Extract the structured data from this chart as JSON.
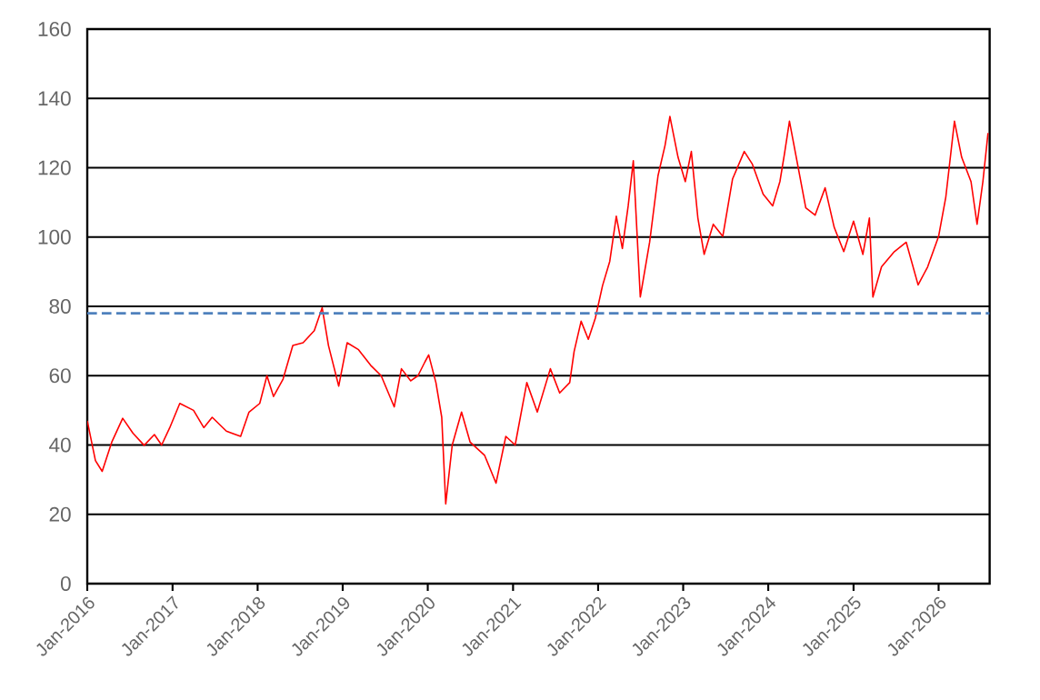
{
  "chart_data": {
    "type": "line",
    "x": [
      "2016-01-01",
      "2016-02-05",
      "2016-03-05",
      "2016-04-15",
      "2016-06-01",
      "2016-07-15",
      "2016-09-01",
      "2016-10-15",
      "2016-11-15",
      "2016-12-20",
      "2017-02-01",
      "2017-04-01",
      "2017-05-15",
      "2017-06-20",
      "2017-08-20",
      "2017-10-20",
      "2017-11-25",
      "2018-01-10",
      "2018-02-10",
      "2018-03-10",
      "2018-04-20",
      "2018-06-01",
      "2018-07-15",
      "2018-09-01",
      "2018-10-05",
      "2018-11-01",
      "2018-12-15",
      "2019-01-20",
      "2019-03-10",
      "2019-05-01",
      "2019-06-15",
      "2019-08-10",
      "2019-09-10",
      "2019-10-20",
      "2019-11-20",
      "2019-12-20",
      "2020-01-05",
      "2020-02-05",
      "2020-03-01",
      "2020-03-18",
      "2020-04-15",
      "2020-05-25",
      "2020-07-01",
      "2020-09-01",
      "2020-10-20",
      "2020-12-01",
      "2021-01-10",
      "2021-03-01",
      "2021-04-15",
      "2021-06-10",
      "2021-07-20",
      "2021-09-01",
      "2021-09-20",
      "2021-10-20",
      "2021-11-20",
      "2021-12-20",
      "2022-01-20",
      "2022-02-20",
      "2022-03-20",
      "2022-04-15",
      "2022-05-10",
      "2022-06-01",
      "2022-07-01",
      "2022-08-10",
      "2022-09-15",
      "2022-10-15",
      "2022-11-05",
      "2022-12-10",
      "2023-01-10",
      "2023-02-05",
      "2023-03-05",
      "2023-04-01",
      "2023-05-10",
      "2023-06-20",
      "2023-08-01",
      "2023-09-20",
      "2023-10-25",
      "2023-12-10",
      "2024-01-20",
      "2024-02-20",
      "2024-03-10",
      "2024-04-01",
      "2024-05-10",
      "2024-06-10",
      "2024-07-20",
      "2024-09-01",
      "2024-10-10",
      "2024-11-20",
      "2025-01-01",
      "2025-02-10",
      "2025-03-10",
      "2025-03-25",
      "2025-05-01",
      "2025-06-25",
      "2025-08-15",
      "2025-10-05",
      "2025-11-15",
      "2026-01-01",
      "2026-02-01",
      "2026-03-10",
      "2026-04-10",
      "2026-05-20",
      "2026-06-15",
      "2026-07-10",
      "2026-08-01"
    ],
    "series": [
      {
        "color": "#ff0000",
        "values": [
          47,
          35.5,
          32.4,
          40.8,
          47.7,
          43.4,
          39.9,
          43,
          40,
          45,
          52,
          50,
          45,
          48,
          44,
          42.5,
          49.5,
          52,
          60,
          54,
          59,
          68.7,
          69.5,
          73,
          79.6,
          68.7,
          57,
          69.5,
          67.5,
          63,
          60,
          51,
          62,
          58.5,
          60,
          64,
          66,
          58,
          48,
          23,
          40,
          49.5,
          40.8,
          37,
          29,
          42.5,
          40,
          58,
          49.5,
          62,
          55,
          58,
          67,
          75.7,
          70.5,
          76.6,
          86,
          93,
          106,
          96.7,
          109,
          122,
          82.7,
          98.5,
          117.7,
          126.4,
          134.8,
          123,
          116,
          124.7,
          105.5,
          95,
          103.7,
          100.2,
          116.8,
          124.7,
          121,
          112.4,
          109,
          116,
          123.8,
          133.4,
          119.5,
          108.4,
          106.3,
          114.2,
          102.8,
          95.8,
          104.6,
          95,
          105.5,
          82.7,
          91.4,
          95.8,
          98.5,
          86.2,
          91.4,
          100.2,
          111.6,
          133.4,
          123,
          116,
          103.7,
          116,
          130
        ]
      }
    ],
    "xlim": [
      "2016-01-01",
      "2026-08-08"
    ],
    "xticks": [
      {
        "value": "2016-01-01",
        "label": "Jan-2016"
      },
      {
        "value": "2017-01-01",
        "label": "Jan-2017"
      },
      {
        "value": "2018-01-01",
        "label": "Jan-2018"
      },
      {
        "value": "2019-01-01",
        "label": "Jan-2019"
      },
      {
        "value": "2020-01-01",
        "label": "Jan-2020"
      },
      {
        "value": "2021-01-01",
        "label": "Jan-2021"
      },
      {
        "value": "2022-01-01",
        "label": "Jan-2022"
      },
      {
        "value": "2023-01-01",
        "label": "Jan-2023"
      },
      {
        "value": "2024-01-01",
        "label": "Jan-2024"
      },
      {
        "value": "2025-01-01",
        "label": "Jan-2025"
      },
      {
        "value": "2026-01-01",
        "label": "Jan-2026"
      }
    ],
    "ylim": [
      0,
      160
    ],
    "yticks": [
      0,
      20,
      40,
      60,
      80,
      100,
      120,
      140,
      160
    ],
    "ref_lines": [
      {
        "axis": "y",
        "value": 78,
        "color": "#4f81bd",
        "line_style": "dashed"
      }
    ],
    "grid": "y",
    "marker": "none",
    "line_style": "solid"
  }
}
